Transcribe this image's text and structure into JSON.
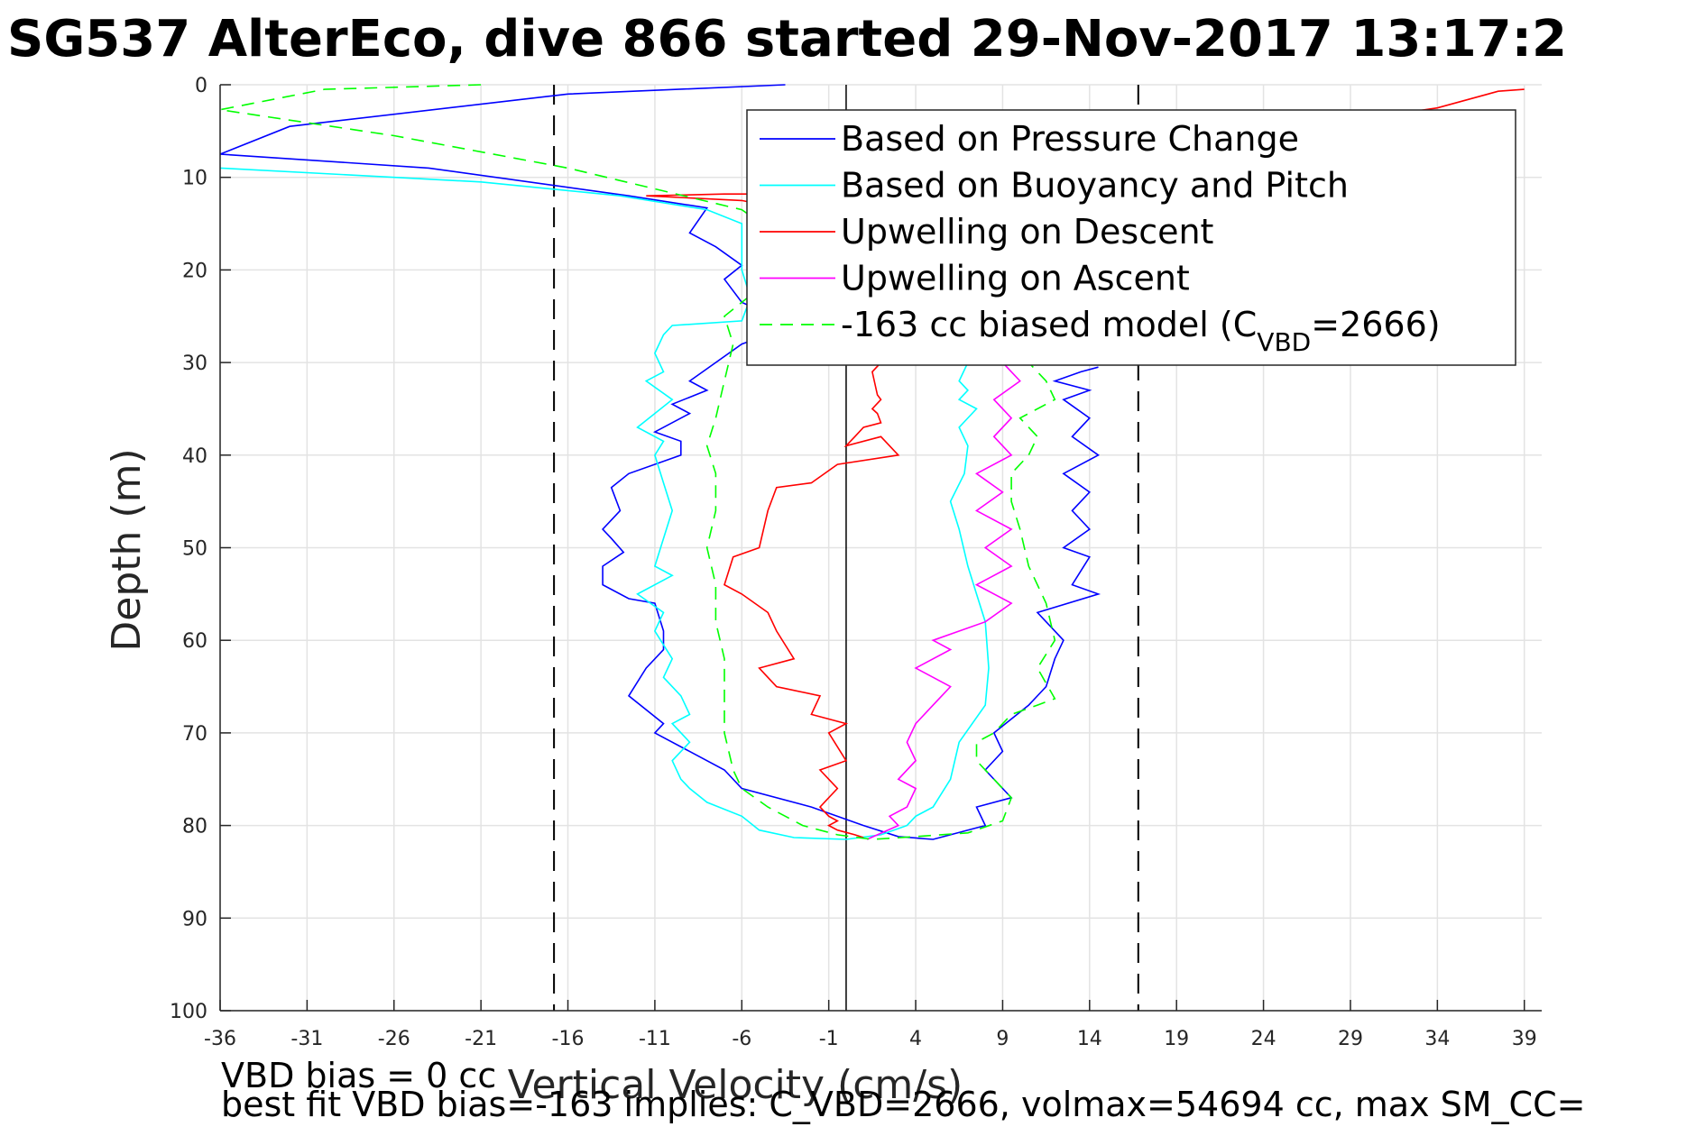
{
  "chart_data": {
    "type": "line",
    "title": "SG537 AlterEco, dive 866 started 29-Nov-2017 13:17:2",
    "xlabel": "Vertical Velocity (cm/s)",
    "ylabel": "Depth (m)",
    "xlim": [
      -36,
      40
    ],
    "ylim": [
      0,
      100
    ],
    "y_reversed": true,
    "grid": true,
    "xticks": [
      -36,
      -31,
      -26,
      -21,
      -16,
      -11,
      -6,
      -1,
      4,
      9,
      14,
      19,
      24,
      29,
      34,
      39
    ],
    "yticks": [
      0,
      10,
      20,
      30,
      40,
      50,
      60,
      70,
      80,
      90,
      100
    ],
    "legend": {
      "placement": "top-right",
      "entries": [
        "Based on Pressure Change",
        "Based on Buoyancy and Pitch",
        "Upwelling on Descent",
        "Upwelling on Ascent",
        "-163 cc biased model (C",
        "VBD",
        "=2666)"
      ]
    },
    "reference_lines": {
      "solid_x": 0,
      "dashed_x": [
        -16.8,
        16.8
      ]
    },
    "series": [
      {
        "name": "Based on Pressure Change",
        "color": "#0000ff",
        "dash": false,
        "x": [
          -3.5,
          -16,
          -32,
          -36,
          -24,
          -12.5,
          -8,
          -9,
          -7.5,
          -6,
          -7,
          -6,
          -3,
          -6,
          -9,
          -8,
          -10,
          -9,
          -11,
          -9.5,
          -9.5,
          -12.5,
          -13.5,
          -13,
          -14,
          -13.5,
          -12.8,
          -14,
          -14,
          -12.5,
          -11,
          -10.5,
          -10.5,
          -11.5,
          -12.5,
          -10.5,
          -11,
          -7,
          -6,
          -2,
          1,
          3,
          5,
          6,
          8,
          7.5,
          9.5,
          9,
          8,
          9,
          8.5,
          10.5,
          11.5,
          12,
          12.5,
          11,
          14.5,
          13,
          14,
          12.5,
          14,
          13,
          14,
          12.5,
          14.5,
          13,
          14,
          12.5,
          14,
          12,
          13.5,
          14.5
        ],
        "y": [
          0,
          1,
          4.5,
          7.5,
          9,
          12,
          13.3,
          16,
          17.5,
          19.5,
          21,
          23.5,
          26,
          28,
          32,
          33,
          34.5,
          35.5,
          37.5,
          38.5,
          40,
          42,
          43.5,
          46,
          48,
          49,
          50.5,
          52,
          54,
          55.5,
          56,
          59,
          61,
          63,
          66,
          69,
          70,
          74,
          76,
          78,
          80,
          81.2,
          81.5,
          81,
          80,
          78,
          77,
          76,
          74,
          72,
          70,
          67,
          65,
          62,
          60,
          57,
          55,
          54,
          51,
          50,
          48,
          46,
          44,
          42,
          40,
          38,
          36,
          34,
          33,
          32,
          31,
          30.5
        ]
      },
      {
        "name": "Based on Buoyancy and Pitch",
        "color": "#00ffff",
        "dash": false,
        "x": [
          -36,
          -21,
          -13,
          -8,
          -6,
          -6,
          -6,
          -5.5,
          -6,
          -10,
          -10.5,
          -11,
          -10.5,
          -11.5,
          -10,
          -12,
          -10.5,
          -11,
          -10.5,
          -10,
          -10.5,
          -11,
          -10,
          -12,
          -10.5,
          -11,
          -10,
          -10.5,
          -9.5,
          -9,
          -10,
          -9,
          -10,
          -9.5,
          -9,
          -8,
          -6,
          -5,
          -3,
          0,
          2,
          3.5,
          4,
          5,
          6,
          6.5,
          8,
          8.2,
          8,
          7.5,
          7,
          6.5,
          6,
          6.8,
          7,
          6.5,
          7.5,
          6.5,
          7,
          6.5,
          7,
          6.5,
          7,
          6.8,
          7,
          7.5,
          8,
          8.5
        ],
        "y": [
          9,
          10.5,
          12,
          13.5,
          15,
          17,
          20,
          23,
          25.5,
          26,
          27,
          29,
          31,
          32,
          34,
          37,
          38.5,
          40,
          43,
          46,
          49,
          52,
          53,
          55,
          57,
          59,
          62,
          64,
          66,
          68,
          69,
          71,
          73,
          75,
          76,
          77.5,
          79,
          80.5,
          81.3,
          81.5,
          81,
          80,
          79,
          78,
          75,
          71,
          67,
          63,
          58,
          55,
          52,
          48,
          45,
          42,
          39,
          37,
          35,
          34,
          33,
          32,
          30,
          28,
          26,
          23,
          20,
          16,
          14,
          12
        ]
      },
      {
        "name": "Upwelling on Descent",
        "color": "#ff0000",
        "dash": false,
        "x": [
          39,
          37.5,
          34,
          25,
          11,
          9,
          7,
          8,
          6,
          4,
          2,
          3,
          -3,
          -7,
          -11.5,
          -6,
          -2,
          0,
          1,
          2,
          3.5,
          2.5,
          1.5,
          1.8,
          2,
          1.5,
          1.8,
          2,
          1,
          0.5,
          0,
          2,
          3,
          -0.5,
          -2,
          -4,
          -4.5,
          -5,
          -6.5,
          -7,
          -6,
          -4.5,
          -4,
          -3,
          -5,
          -4,
          -1.5,
          -2,
          0,
          -1,
          0,
          -1.5,
          -1,
          -0.5,
          -1.5,
          -1,
          -0.5,
          -1,
          -0.5,
          0.5,
          1
        ],
        "y": [
          0.5,
          0.7,
          2.5,
          5,
          6,
          8,
          6.5,
          7,
          9.5,
          10,
          10.5,
          11.5,
          11.8,
          11.8,
          12,
          12.5,
          14,
          16,
          20,
          24,
          27,
          29,
          31,
          33.5,
          34,
          35,
          35.5,
          36.5,
          37,
          38,
          39,
          38,
          40,
          41,
          43,
          43.5,
          46,
          50,
          51,
          54,
          55,
          57,
          59,
          62,
          63,
          65,
          66,
          68,
          69,
          70,
          73,
          74,
          75,
          76,
          78,
          79,
          79.5,
          80,
          80.5,
          81,
          81.3
        ]
      },
      {
        "name": "Upwelling on Ascent",
        "color": "#ff00ff",
        "dash": false,
        "x": [
          1.2,
          3,
          2.5,
          3.5,
          4,
          3,
          4,
          3.5,
          4,
          5,
          6,
          4,
          6,
          5,
          8,
          9.5,
          7.5,
          9.5,
          8,
          9.5,
          7.5,
          9,
          7.5,
          9.5,
          8.5,
          9.5,
          8.5,
          10,
          9,
          10.5
        ],
        "y": [
          81.5,
          80,
          79,
          78,
          76,
          75,
          73,
          71,
          69,
          67,
          65,
          63,
          61,
          60,
          58,
          56,
          54,
          52,
          50,
          48,
          46,
          44,
          42,
          40,
          38,
          36,
          34,
          32,
          30,
          28
        ]
      },
      {
        "name": "-163 cc biased model (C_VBD=2666)",
        "color": "#00ff00",
        "dash": true,
        "x": [
          -21,
          -30,
          -36,
          -26,
          -16,
          -6,
          -4.5,
          -3.5,
          -5,
          -7,
          -6.5,
          -7,
          -7.5,
          -8,
          -7.5,
          -7.5,
          -8,
          -7.5,
          -7.5,
          -7,
          -7,
          -7,
          -6.5,
          -6,
          -4.5,
          -2.5,
          -0.5,
          1.5,
          4,
          7,
          9,
          9.5,
          8.5,
          7.5,
          7.5,
          8.5,
          9.5,
          11,
          12,
          11,
          12,
          11.5,
          10.5,
          10,
          9.5,
          9.5,
          10.5,
          11,
          10,
          12,
          11.5,
          10.5
        ],
        "y": [
          0,
          0.5,
          2.7,
          5.5,
          9,
          13.5,
          15.5,
          18,
          22,
          25,
          28,
          32,
          36,
          39,
          42,
          46,
          50,
          54,
          58,
          62,
          66,
          70,
          74,
          76,
          78,
          80,
          81,
          81.5,
          81.2,
          80.8,
          79.5,
          77,
          75,
          73,
          71,
          70,
          68,
          67,
          66.3,
          63,
          60,
          56,
          52,
          48,
          45,
          42,
          40,
          38,
          36,
          34,
          32,
          30
        ]
      }
    ]
  },
  "notes": {
    "vbd_bias": "VBD bias = 0 cc",
    "best_fit": "best fit VBD bias=-163 implies: C_VBD=2666, volmax=54694 cc, max SM_CC="
  }
}
